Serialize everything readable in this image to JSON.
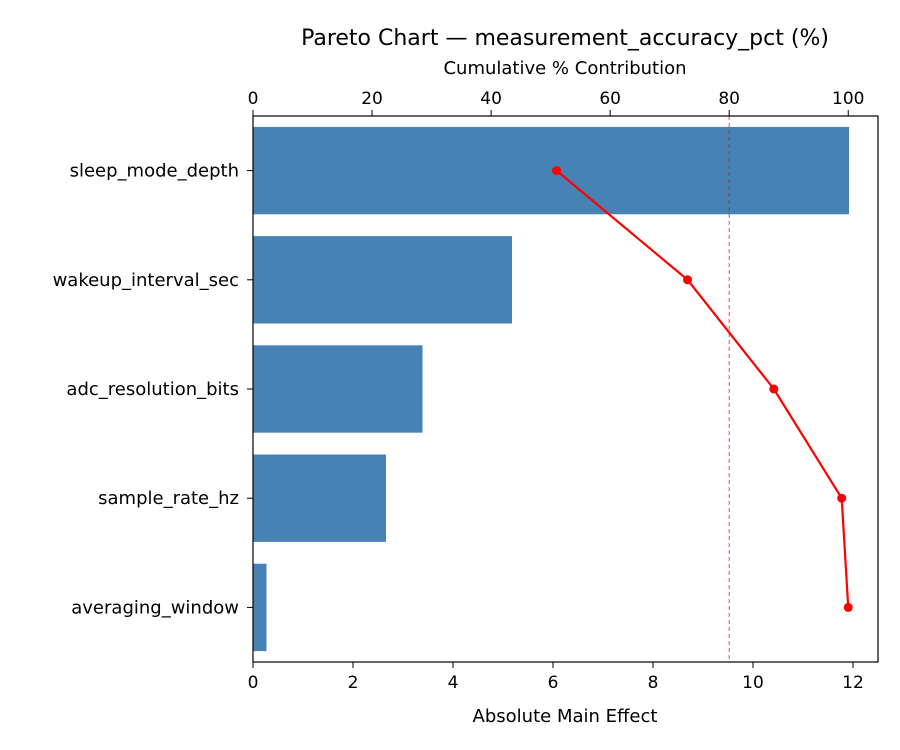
{
  "chart_data": {
    "type": "bar",
    "orientation": "horizontal",
    "title": "Pareto Chart — measurement_accuracy_pct (%)",
    "xlabel": "Absolute Main Effect",
    "x2label": "Cumulative % Contribution",
    "categories": [
      "sleep_mode_depth",
      "wakeup_interval_sec",
      "adc_resolution_bits",
      "sample_rate_hz",
      "averaging_window"
    ],
    "values": [
      11.92,
      5.18,
      3.39,
      2.66,
      0.27
    ],
    "cumulative_pct": [
      51.0,
      73.0,
      87.5,
      98.9,
      100.0
    ],
    "xlim": [
      0,
      12.5
    ],
    "x2lim": [
      0,
      105
    ],
    "xticks": [
      0,
      2,
      4,
      6,
      8,
      10,
      12
    ],
    "x2ticks": [
      0,
      20,
      40,
      60,
      80,
      100
    ],
    "threshold_pct": 80,
    "colors": {
      "bar": "#4682b4",
      "line": "#ff0000",
      "threshold": "#ff0000"
    },
    "grid": false,
    "legend": "none"
  }
}
